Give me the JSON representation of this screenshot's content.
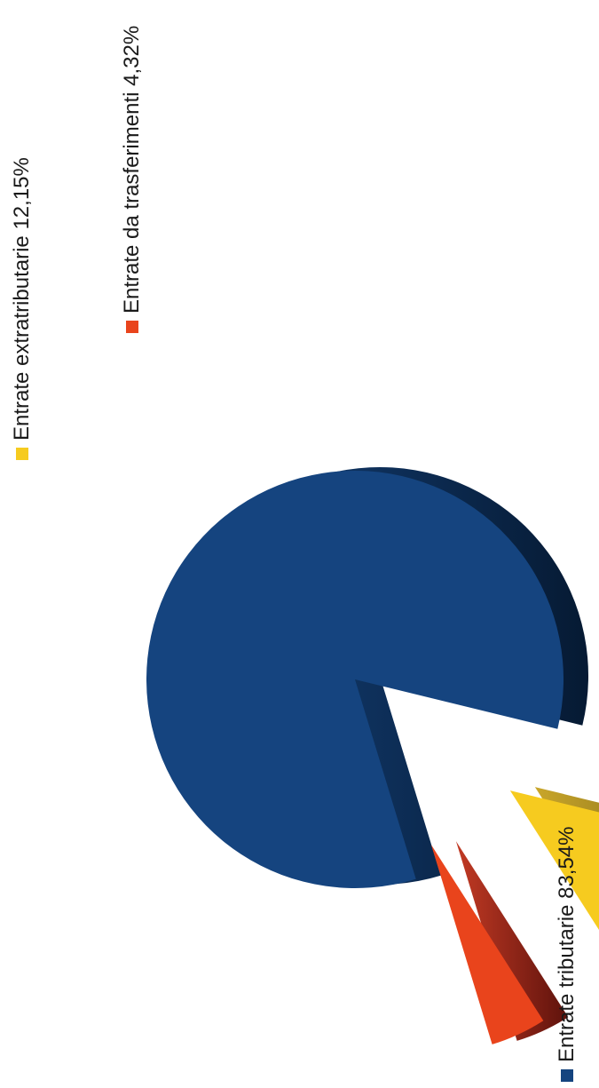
{
  "chart_data": {
    "type": "pie",
    "title": "",
    "slices": [
      {
        "label": "Entrate tributarie",
        "value_text": "83,54%",
        "value": 83.54,
        "color": "#15447f"
      },
      {
        "label": "Entrate extratributarie",
        "value_text": "12,15%",
        "value": 12.15,
        "color": "#f6cb1f"
      },
      {
        "label": "Entrate da trasferimenti",
        "value_text": "4,32%",
        "value": 4.32,
        "color": "#e9441c"
      }
    ],
    "legend_position": "beside slices (rotated)",
    "style": "3d exploded"
  }
}
